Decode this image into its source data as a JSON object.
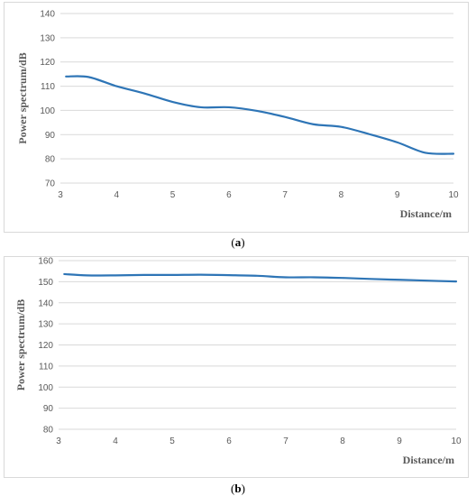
{
  "chart_data": [
    {
      "type": "line",
      "panel": "a",
      "caption": "a",
      "xlabel": "Distance/m",
      "ylabel": "Power spectrum/dB",
      "xlim": [
        3,
        10
      ],
      "ylim": [
        70,
        140
      ],
      "x_ticks": [
        "3",
        "4",
        "5",
        "6",
        "7",
        "8",
        "9",
        "10"
      ],
      "y_ticks": [
        "70",
        "80",
        "90",
        "100",
        "110",
        "120",
        "130",
        "140"
      ],
      "grid": "horizontal",
      "line_color": "#2e75b6",
      "x": [
        3.1,
        3.5,
        4.0,
        4.5,
        5.0,
        5.5,
        6.0,
        6.5,
        7.0,
        7.5,
        8.0,
        8.5,
        9.0,
        9.5,
        10.0
      ],
      "y": [
        114,
        113.8,
        110,
        107,
        103.5,
        101.3,
        101.3,
        99.8,
        97.3,
        94.3,
        93.2,
        90.2,
        86.8,
        82.5,
        82.1
      ]
    },
    {
      "type": "line",
      "panel": "b",
      "caption": "b",
      "xlabel": "Distance/m",
      "ylabel": "Power spectrum/dB",
      "xlim": [
        3,
        10
      ],
      "ylim": [
        80,
        160
      ],
      "x_ticks": [
        "3",
        "4",
        "5",
        "6",
        "7",
        "8",
        "9",
        "10"
      ],
      "y_ticks": [
        "80",
        "90",
        "100",
        "110",
        "120",
        "130",
        "140",
        "150",
        "160"
      ],
      "grid": "horizontal",
      "line_color": "#2e75b6",
      "x": [
        3.1,
        3.5,
        4.0,
        4.5,
        5.0,
        5.5,
        6.0,
        6.5,
        7.0,
        7.5,
        8.0,
        8.5,
        9.0,
        9.5,
        10.0
      ],
      "y": [
        153.6,
        153,
        153,
        153.2,
        153.2,
        153.3,
        153.1,
        152.8,
        152.1,
        152.1,
        151.8,
        151.3,
        150.9,
        150.5,
        150.1
      ]
    }
  ]
}
